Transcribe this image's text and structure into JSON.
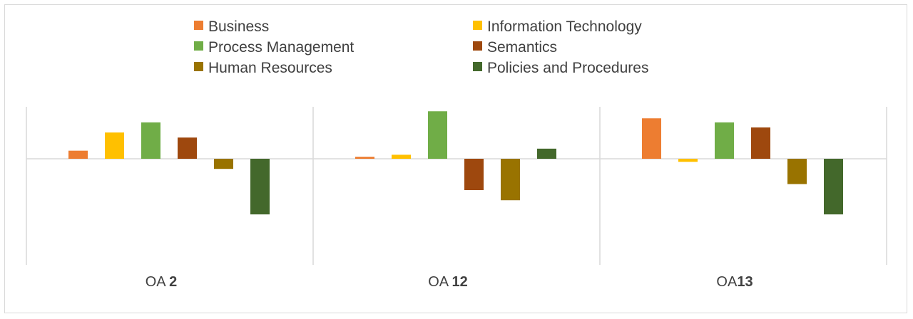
{
  "chart_data": {
    "type": "bar",
    "title": "",
    "xlabel": "",
    "ylabel": "",
    "categories": [
      {
        "prefix": "OA ",
        "bold": "2"
      },
      {
        "prefix": "OA ",
        "bold": "12"
      },
      {
        "prefix": "OA",
        "bold": "13"
      }
    ],
    "ylim": [
      -1.0,
      1.0
    ],
    "grid": false,
    "legend": "top",
    "series": [
      {
        "name": "Business",
        "color": "#ED7D31",
        "values": [
          0.08,
          0.02,
          0.4
        ]
      },
      {
        "name": "Information Technology",
        "color": "#FFC000",
        "values": [
          0.26,
          0.04,
          -0.03
        ]
      },
      {
        "name": "Process Management",
        "color": "#70AD47",
        "values": [
          0.36,
          0.47,
          0.36
        ]
      },
      {
        "name": "Semantics",
        "color": "#9E480E",
        "values": [
          0.21,
          -0.31,
          0.31
        ]
      },
      {
        "name": "Human Resources",
        "color": "#997300",
        "values": [
          -0.1,
          -0.41,
          -0.25
        ]
      },
      {
        "name": "Policies and Procedures",
        "color": "#43682B",
        "values": [
          -0.55,
          0.1,
          -0.55
        ]
      }
    ]
  }
}
